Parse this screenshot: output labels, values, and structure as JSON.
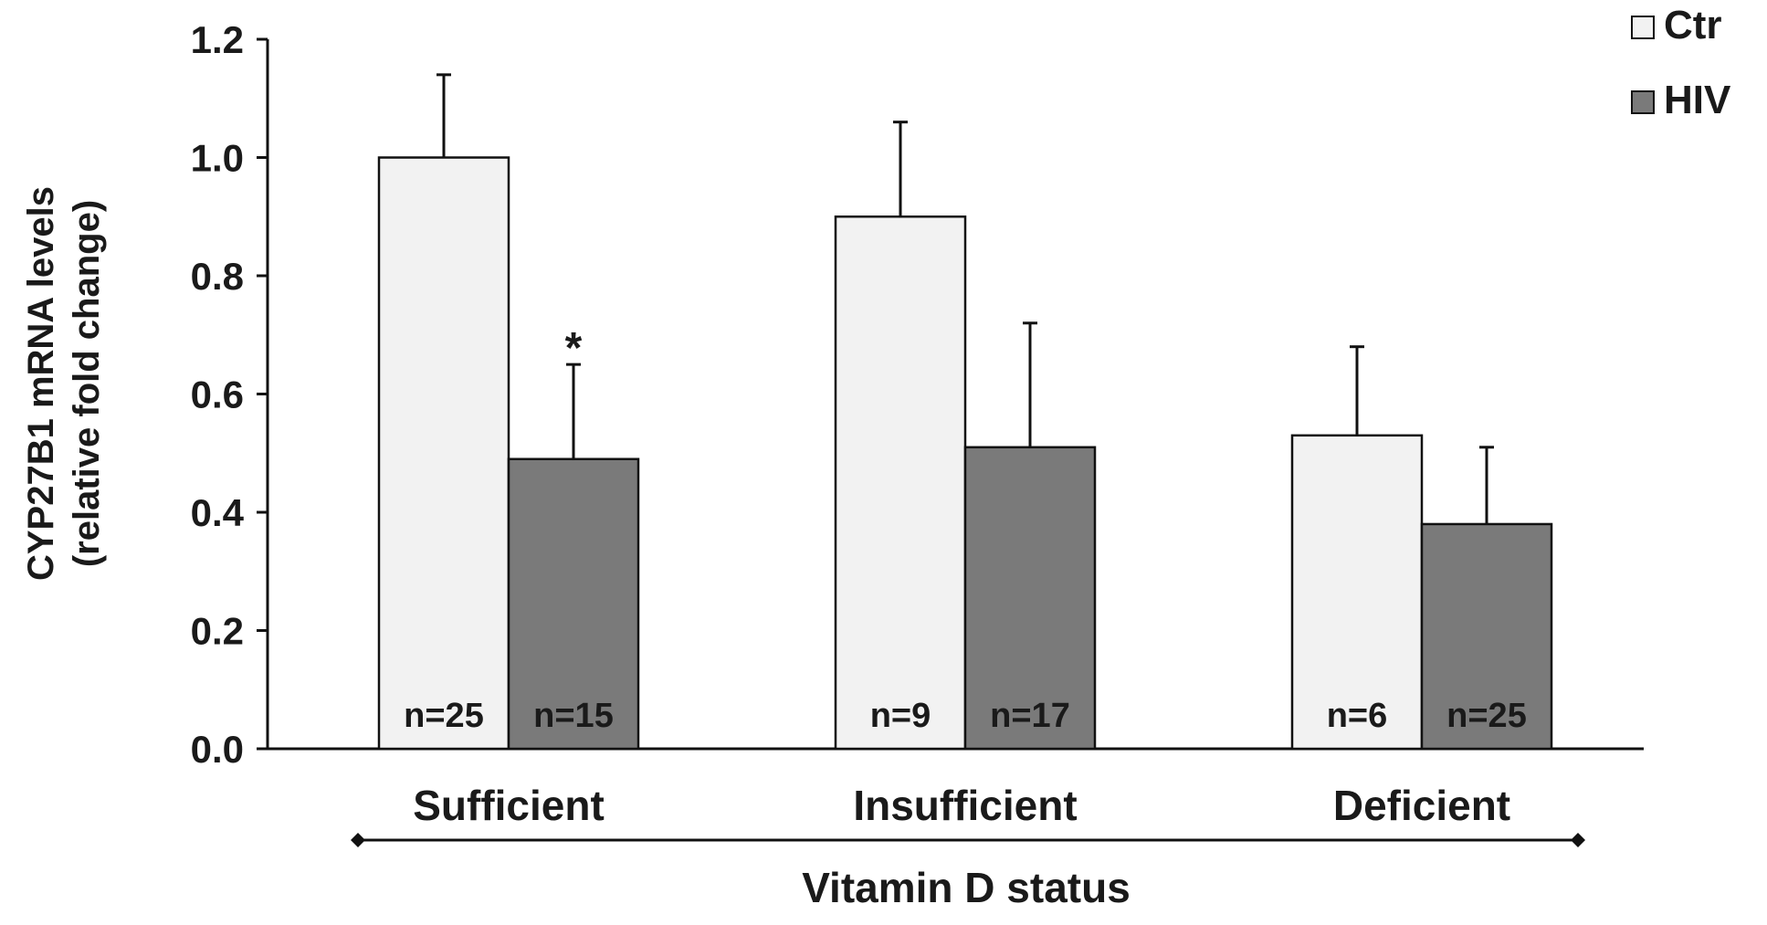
{
  "chart_data": {
    "type": "bar",
    "title": "",
    "ylabel_line1": "CYP27B1 mRNA levels",
    "ylabel_line2": "(relative fold change)",
    "xlabel": "Vitamin D status",
    "ylim": [
      0,
      1.2
    ],
    "yticks": [
      "0.0",
      "0.2",
      "0.4",
      "0.6",
      "0.8",
      "1.0",
      "1.2"
    ],
    "categories": [
      "Sufficient",
      "Insufficient",
      "Deficient"
    ],
    "legend_position": "top-right",
    "series": [
      {
        "name": "Ctr",
        "color": "#f2f2f2",
        "values": [
          1.0,
          0.9,
          0.53
        ],
        "errors": [
          0.14,
          0.16,
          0.15
        ],
        "n_labels": [
          "n=25",
          "n=9",
          "n=6"
        ]
      },
      {
        "name": "HIV",
        "color": "#7a7a7a",
        "values": [
          0.49,
          0.51,
          0.38
        ],
        "errors": [
          0.16,
          0.21,
          0.13
        ],
        "n_labels": [
          "n=15",
          "n=17",
          "n=25"
        ]
      }
    ],
    "annotations": [
      {
        "text": "*",
        "category_index": 0,
        "series_index": 1
      }
    ]
  }
}
